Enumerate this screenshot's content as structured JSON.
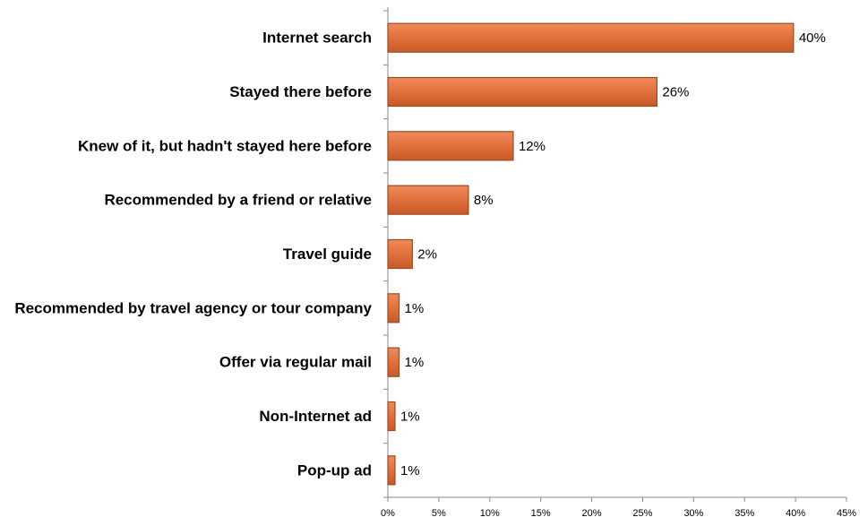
{
  "chart_data": {
    "type": "hbar",
    "categories": [
      "Internet search",
      "Stayed there before",
      "Knew of it, but hadn't stayed here before",
      "Recommended by a friend or relative",
      "Travel guide",
      "Recommended by travel agency or tour company",
      "Offer via regular mail",
      "Non-Internet ad",
      "Pop-up ad"
    ],
    "values": [
      39.8,
      26.4,
      12.3,
      7.9,
      2.4,
      1.1,
      1.1,
      0.7,
      0.7
    ],
    "value_labels": [
      "40%",
      "26%",
      "12%",
      "8%",
      "2%",
      "1%",
      "1%",
      "1%",
      "1%"
    ],
    "color": "#e0703c",
    "xlim": [
      0,
      45
    ],
    "xticks": [
      {
        "value": 0,
        "label": "0%"
      },
      {
        "value": 5,
        "label": "5%"
      },
      {
        "value": 10,
        "label": "10%"
      },
      {
        "value": 15,
        "label": "15%"
      },
      {
        "value": 20,
        "label": "20%"
      },
      {
        "value": 25,
        "label": "25%"
      },
      {
        "value": 30,
        "label": "30%"
      },
      {
        "value": 35,
        "label": "35%"
      },
      {
        "value": 40,
        "label": "40%"
      },
      {
        "value": 45,
        "label": "45%"
      }
    ],
    "grid": false
  }
}
